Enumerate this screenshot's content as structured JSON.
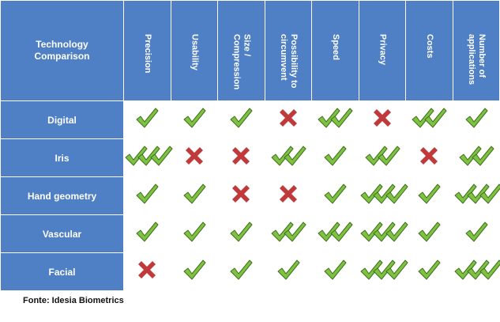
{
  "table": {
    "corner_label": "Technology\nComparison",
    "columns": [
      "Precision",
      "Usability",
      "Size / Compression",
      "Possibility to\ncircumvent",
      "Speed",
      "Privacy",
      "Costs",
      "Number of\napplications"
    ],
    "rows": [
      {
        "label": "Digital",
        "ratings": [
          1,
          1,
          1,
          0,
          2,
          0,
          2,
          1
        ]
      },
      {
        "label": "Iris",
        "ratings": [
          3,
          0,
          0,
          2,
          1,
          2,
          0,
          2
        ]
      },
      {
        "label": "Hand geometry",
        "ratings": [
          1,
          1,
          0,
          0,
          1,
          3,
          1,
          3
        ]
      },
      {
        "label": "Vascular",
        "ratings": [
          1,
          1,
          1,
          2,
          2,
          3,
          1,
          1
        ]
      },
      {
        "label": "Facial",
        "ratings": [
          0,
          1,
          1,
          1,
          1,
          3,
          1,
          3
        ]
      }
    ],
    "rating_legend": {
      "0": "cross-icon",
      "1": "check-icon",
      "2": "double-check-icon",
      "3": "triple-check-icon"
    }
  },
  "source": "Fonte: Idesia Biometrics",
  "colors": {
    "header_bg": "#4f7fc4",
    "check_fill": "#7ec242",
    "check_stroke": "#3f6f1c",
    "cross_fill": "#c0393b"
  }
}
